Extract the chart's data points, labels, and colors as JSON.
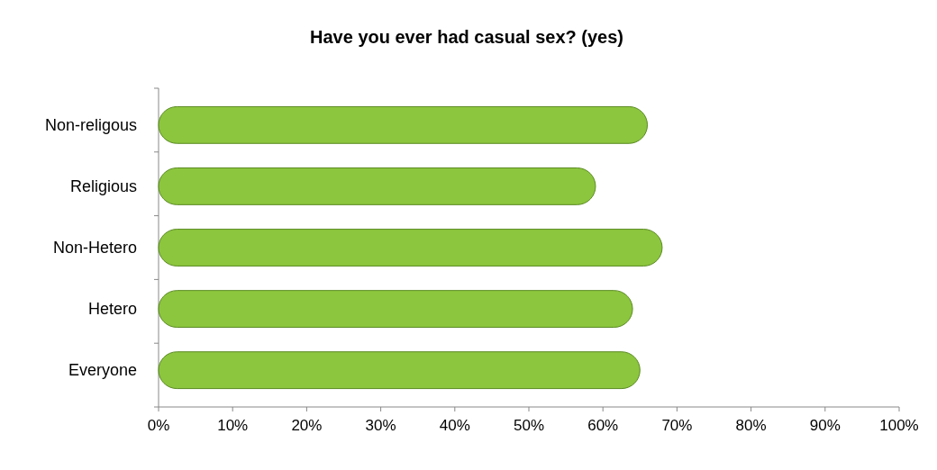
{
  "chart_data": {
    "type": "bar",
    "orientation": "horizontal",
    "title": "Have you ever had casual sex? (yes)",
    "categories": [
      "Non-religous",
      "Religious",
      "Non-Hetero",
      "Hetero",
      "Everyone"
    ],
    "values": [
      66,
      59,
      68,
      64,
      65
    ],
    "color": "#8cc63e",
    "xlim": [
      0,
      100
    ],
    "xticks": [
      {
        "value": 0,
        "label": "0%"
      },
      {
        "value": 10,
        "label": "10%"
      },
      {
        "value": 20,
        "label": "20%"
      },
      {
        "value": 30,
        "label": "30%"
      },
      {
        "value": 40,
        "label": "40%"
      },
      {
        "value": 50,
        "label": "50%"
      },
      {
        "value": 60,
        "label": "60%"
      },
      {
        "value": 70,
        "label": "70%"
      },
      {
        "value": 80,
        "label": "80%"
      },
      {
        "value": 90,
        "label": "90%"
      },
      {
        "value": 100,
        "label": "100%"
      }
    ],
    "grid": false
  }
}
